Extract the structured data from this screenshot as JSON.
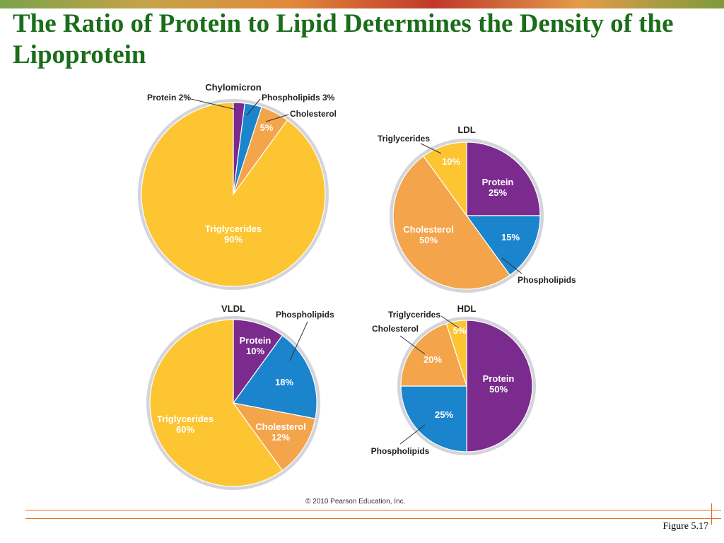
{
  "title": "The Ratio of Protein to Lipid Determines the Density of the Lipoprotein",
  "copyright": "© 2010 Pearson Education, Inc.",
  "figure_label": "Figure 5.17",
  "colors": {
    "Protein": "#7b2a8e",
    "Phospholipids": "#1a84cc",
    "Cholesterol": "#f4a44a",
    "Triglycerides": "#fcc531",
    "rim": "#d4d4dc",
    "title": "#1a6d1a",
    "accent_rule": "#e06a1a"
  },
  "chart_data": [
    {
      "type": "pie",
      "title": "Chylomicron",
      "slices": [
        {
          "label": "Protein",
          "value": 2,
          "inside": "",
          "callout": "Protein 2%"
        },
        {
          "label": "Phospholipids",
          "value": 3,
          "inside": "",
          "callout": "Phospholipids 3%"
        },
        {
          "label": "Cholesterol",
          "value": 5,
          "inside": "5%",
          "callout": "Cholesterol"
        },
        {
          "label": "Triglycerides",
          "value": 90,
          "inside": "Triglycerides\n90%",
          "callout": ""
        }
      ]
    },
    {
      "type": "pie",
      "title": "LDL",
      "slices": [
        {
          "label": "Protein",
          "value": 25,
          "inside": "Protein\n25%",
          "callout": ""
        },
        {
          "label": "Phospholipids",
          "value": 15,
          "inside": "15%",
          "callout": "Phospholipids"
        },
        {
          "label": "Cholesterol",
          "value": 50,
          "inside": "Cholesterol\n50%",
          "callout": ""
        },
        {
          "label": "Triglycerides",
          "value": 10,
          "inside": "10%",
          "callout": "Triglycerides"
        }
      ]
    },
    {
      "type": "pie",
      "title": "VLDL",
      "slices": [
        {
          "label": "Protein",
          "value": 10,
          "inside": "Protein\n10%",
          "callout": ""
        },
        {
          "label": "Phospholipids",
          "value": 18,
          "inside": "18%",
          "callout": "Phospholipids"
        },
        {
          "label": "Cholesterol",
          "value": 12,
          "inside": "Cholesterol\n12%",
          "callout": ""
        },
        {
          "label": "Triglycerides",
          "value": 60,
          "inside": "Triglycerides\n60%",
          "callout": ""
        }
      ]
    },
    {
      "type": "pie",
      "title": "HDL",
      "slices": [
        {
          "label": "Protein",
          "value": 50,
          "inside": "Protein\n50%",
          "callout": ""
        },
        {
          "label": "Phospholipids",
          "value": 25,
          "inside": "25%",
          "callout": "Phospholipids"
        },
        {
          "label": "Cholesterol",
          "value": 20,
          "inside": "20%",
          "callout": "Cholesterol"
        },
        {
          "label": "Triglycerides",
          "value": 5,
          "inside": "5%",
          "callout": "Triglycerides"
        }
      ]
    }
  ]
}
